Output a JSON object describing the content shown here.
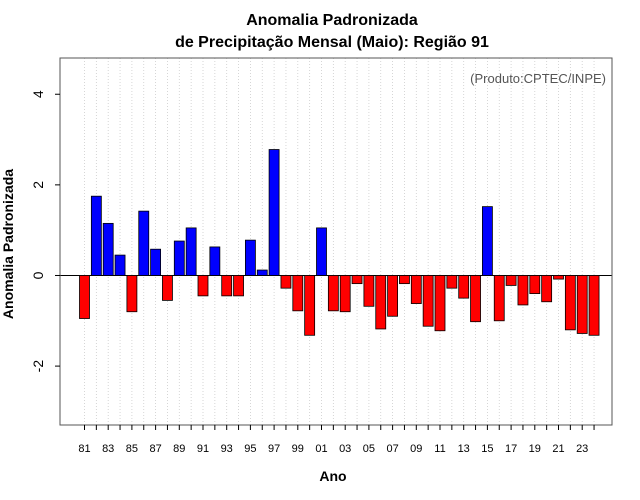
{
  "chart_data": {
    "type": "bar",
    "title_line1": "Anomalia Padronizada",
    "title_line2": "de Precipitação Mensal (Maio): Região 91",
    "xlabel": "Ano",
    "ylabel": "Anomalia Padronizada",
    "source_note": "(Produto:CPTEC/INPE)",
    "ylim": [
      -3.3,
      4.8
    ],
    "yticks": [
      -2,
      0,
      2,
      4
    ],
    "ytick_labels": [
      "-2",
      "0",
      "2",
      "4"
    ],
    "x_tick_labels": [
      "81",
      "83",
      "85",
      "87",
      "89",
      "91",
      "93",
      "95",
      "97",
      "99",
      "01",
      "03",
      "05",
      "07",
      "09",
      "11",
      "13",
      "15",
      "17",
      "19",
      "21",
      "23"
    ],
    "categories": [
      "1981",
      "1982",
      "1983",
      "1984",
      "1985",
      "1986",
      "1987",
      "1988",
      "1989",
      "1990",
      "1991",
      "1992",
      "1993",
      "1994",
      "1995",
      "1996",
      "1997",
      "1998",
      "1999",
      "2000",
      "2001",
      "2002",
      "2003",
      "2004",
      "2005",
      "2006",
      "2007",
      "2008",
      "2009",
      "2010",
      "2011",
      "2012",
      "2013",
      "2014",
      "2015",
      "2016",
      "2017",
      "2018",
      "2019",
      "2020",
      "2021",
      "2022",
      "2023",
      "2024"
    ],
    "values": [
      -0.95,
      1.75,
      1.15,
      0.45,
      -0.8,
      1.42,
      0.58,
      -0.55,
      0.76,
      1.05,
      -0.45,
      0.63,
      -0.45,
      -0.45,
      0.78,
      0.12,
      2.78,
      -0.28,
      -0.78,
      -1.32,
      1.05,
      -0.78,
      -0.8,
      -0.18,
      -0.68,
      -1.18,
      -0.9,
      -0.18,
      -0.62,
      -1.12,
      -1.22,
      -0.28,
      -0.5,
      -1.02,
      1.52,
      -1.0,
      -0.22,
      -0.65,
      -0.4,
      -0.58,
      -0.08,
      -1.2,
      -1.28,
      -1.32
    ],
    "grid": "vertical dotted",
    "colors": {
      "positive": "#0000ff",
      "negative": "#ff0000",
      "zero_line": "#000000",
      "grid": "#cccccc"
    }
  }
}
